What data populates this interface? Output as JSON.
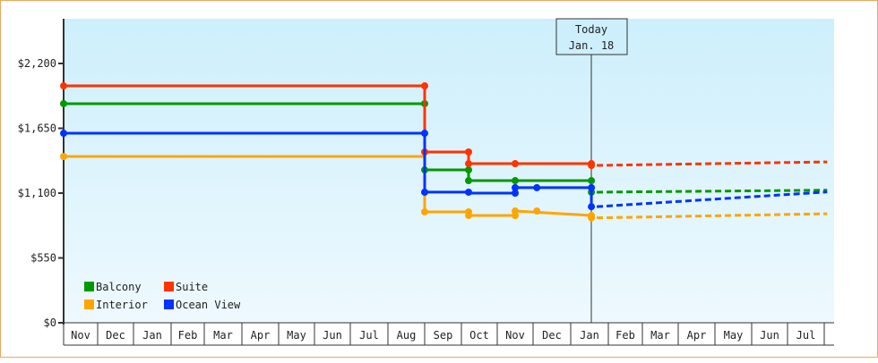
{
  "chart_data": {
    "type": "line",
    "title": "",
    "xlabel": "",
    "ylabel": "",
    "ylim": [
      0,
      2500
    ],
    "y_ticks": [
      {
        "value": 0,
        "label": "$0"
      },
      {
        "value": 550,
        "label": "$550"
      },
      {
        "value": 1100,
        "label": "$1,100"
      },
      {
        "value": 1650,
        "label": "$1,650"
      },
      {
        "value": 2200,
        "label": "$2,200"
      }
    ],
    "x_ticks": [
      "Nov",
      "Dec",
      "Jan",
      "Feb",
      "Mar",
      "Apr",
      "May",
      "Jun",
      "Jul",
      "Aug",
      "Sep",
      "Oct",
      "Nov",
      "Dec",
      "Jan",
      "Feb",
      "Mar",
      "Apr",
      "May",
      "Jun",
      "Jul"
    ],
    "grid": false,
    "legend_position": "lower-left",
    "annotation": {
      "line1": "Today",
      "line2": "Jan. 18",
      "x_month_index": 14.55
    },
    "series": [
      {
        "name": "Balcony",
        "color": "#009900",
        "history": [
          [
            0,
            1859
          ],
          [
            10,
            1859
          ],
          [
            10,
            1297
          ],
          [
            11.2,
            1297
          ],
          [
            11.2,
            1206
          ],
          [
            14.55,
            1206
          ]
        ],
        "points": [
          [
            0,
            1859
          ],
          [
            10,
            1859
          ],
          [
            10,
            1297
          ],
          [
            11.2,
            1297
          ],
          [
            11.2,
            1206
          ],
          [
            12.5,
            1206
          ],
          [
            14.55,
            1206
          ],
          [
            14.55,
            1108
          ]
        ],
        "forecast": [
          [
            14.55,
            1108
          ],
          [
            21.3,
            1125
          ]
        ]
      },
      {
        "name": "Suite",
        "color": "#ff3300",
        "history": [
          [
            0,
            2010
          ],
          [
            10,
            2010
          ],
          [
            10,
            1449
          ],
          [
            11.2,
            1449
          ],
          [
            11.2,
            1350
          ],
          [
            14.55,
            1350
          ]
        ],
        "points": [
          [
            0,
            2010
          ],
          [
            10,
            2010
          ],
          [
            10,
            1449
          ],
          [
            11.2,
            1449
          ],
          [
            11.2,
            1350
          ],
          [
            12.5,
            1350
          ],
          [
            14.55,
            1350
          ],
          [
            14.55,
            1335
          ]
        ],
        "forecast": [
          [
            14.55,
            1335
          ],
          [
            21.3,
            1365
          ]
        ]
      },
      {
        "name": "Interior",
        "color": "#ffa500",
        "history": [
          [
            0,
            1411
          ],
          [
            10,
            1411
          ],
          [
            10,
            941
          ],
          [
            11.2,
            941
          ],
          [
            11.2,
            910
          ],
          [
            12.5,
            910
          ],
          [
            12.5,
            948
          ],
          [
            14.55,
            910
          ]
        ],
        "points": [
          [
            0,
            1411
          ],
          [
            10,
            941
          ],
          [
            11.2,
            941
          ],
          [
            11.2,
            910
          ],
          [
            12.5,
            910
          ],
          [
            12.5,
            948
          ],
          [
            13.1,
            948
          ],
          [
            14.55,
            910
          ],
          [
            14.55,
            890
          ]
        ],
        "forecast": [
          [
            14.55,
            890
          ],
          [
            21.3,
            925
          ]
        ]
      },
      {
        "name": "Ocean View",
        "color": "#0033ff",
        "history": [
          [
            0,
            1608
          ],
          [
            10,
            1608
          ],
          [
            10,
            1108
          ],
          [
            11.2,
            1108
          ],
          [
            11.2,
            1100
          ],
          [
            12.5,
            1100
          ],
          [
            12.5,
            1146
          ],
          [
            14.55,
            1146
          ],
          [
            14.55,
            985
          ]
        ],
        "points": [
          [
            0,
            1608
          ],
          [
            10,
            1608
          ],
          [
            10,
            1108
          ],
          [
            11.2,
            1108
          ],
          [
            12.5,
            1100
          ],
          [
            12.5,
            1146
          ],
          [
            13.1,
            1146
          ],
          [
            14.55,
            1146
          ],
          [
            14.55,
            985
          ]
        ],
        "forecast": [
          [
            14.55,
            985
          ],
          [
            21.3,
            1110
          ]
        ]
      }
    ]
  },
  "legend": {
    "items": [
      {
        "label": "Balcony",
        "color": "#009900"
      },
      {
        "label": "Suite",
        "color": "#ff3300"
      },
      {
        "label": "Interior",
        "color": "#ffa500"
      },
      {
        "label": "Ocean View",
        "color": "#0033ff"
      }
    ]
  },
  "today_marker": {
    "line1": "Today",
    "line2": "Jan. 18"
  }
}
